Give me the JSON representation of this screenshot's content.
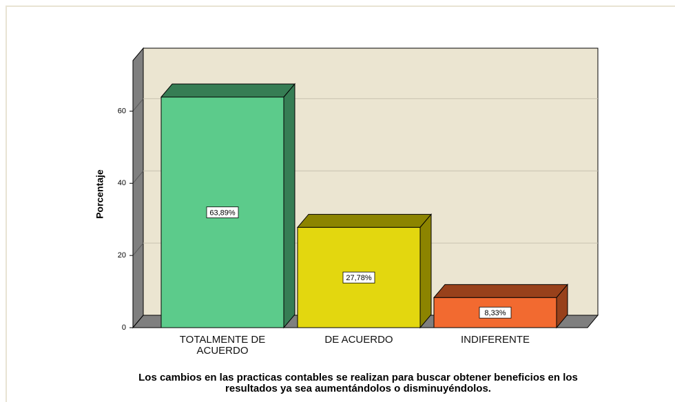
{
  "chart_data": {
    "type": "bar3d",
    "title": "Los cambios en las practicas contables se realizan para buscar obtener beneficios en los resultados ya sea aumentándolos o disminuyéndolos.",
    "y_label": "Porcentaje",
    "categories": [
      "TOTALMENTE DE ACUERDO",
      "DE ACUERDO",
      "INDIFERENTE"
    ],
    "values": [
      63.89,
      27.78,
      8.33
    ],
    "value_labels": [
      "63,89%",
      "27,78%",
      "8,33%"
    ],
    "colors": [
      "#5ccb8b",
      "#e3d70f",
      "#f26a30"
    ],
    "side_colors": [
      "#367d54",
      "#8c8400",
      "#98411b"
    ],
    "ylim": [
      0,
      74
    ],
    "yticks": [
      0,
      20,
      40,
      60
    ],
    "grid": true
  }
}
